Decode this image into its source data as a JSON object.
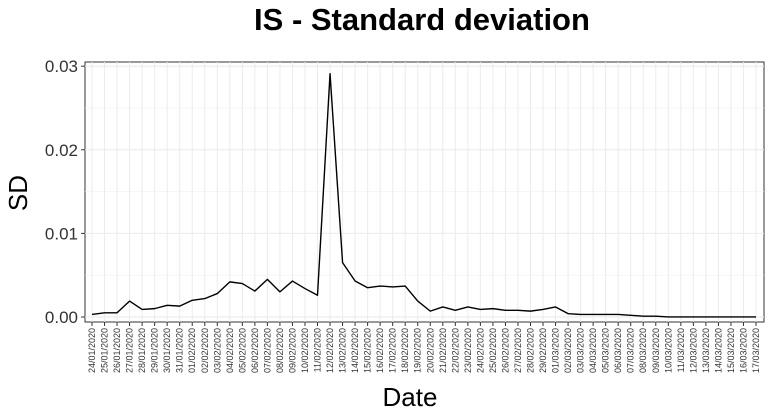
{
  "chart_data": {
    "type": "line",
    "title": "IS - Standard deviation",
    "xlabel": "Date",
    "ylabel": "SD",
    "ylim": [
      -0.0006,
      0.0305
    ],
    "yticks": [
      "0.00",
      "0.01",
      "0.02",
      "0.03"
    ],
    "ytick_values": [
      0,
      0.01,
      0.02,
      0.03
    ],
    "grid": true,
    "line_color": "#000000",
    "x": [
      "24/01/2020",
      "25/01/2020",
      "26/01/2020",
      "27/01/2020",
      "28/01/2020",
      "29/01/2020",
      "30/01/2020",
      "31/01/2020",
      "01/02/2020",
      "02/02/2020",
      "03/02/2020",
      "04/02/2020",
      "05/02/2020",
      "06/02/2020",
      "07/02/2020",
      "08/02/2020",
      "09/02/2020",
      "10/02/2020",
      "11/02/2020",
      "12/02/2020",
      "13/02/2020",
      "14/02/2020",
      "15/02/2020",
      "16/02/2020",
      "17/02/2020",
      "18/02/2020",
      "19/02/2020",
      "20/02/2020",
      "21/02/2020",
      "22/02/2020",
      "23/02/2020",
      "24/02/2020",
      "25/02/2020",
      "26/02/2020",
      "27/02/2020",
      "28/02/2020",
      "29/02/2020",
      "01/03/2020",
      "02/03/2020",
      "03/03/2020",
      "04/03/2020",
      "05/03/2020",
      "06/03/2020",
      "07/03/2020",
      "08/03/2020",
      "09/03/2020",
      "10/03/2020",
      "11/03/2020",
      "12/03/2020",
      "13/03/2020",
      "14/03/2020",
      "15/03/2020",
      "16/03/2020",
      "17/03/2020"
    ],
    "series": [
      {
        "values": [
          0.0003,
          0.0005,
          0.0005,
          0.0019,
          0.0009,
          0.001,
          0.0014,
          0.0013,
          0.002,
          0.0022,
          0.0028,
          0.0042,
          0.004,
          0.0031,
          0.0045,
          0.003,
          0.0043,
          0.0034,
          0.0026,
          0.0291,
          0.0065,
          0.0043,
          0.0035,
          0.0037,
          0.0036,
          0.0037,
          0.0019,
          0.0007,
          0.0012,
          0.0008,
          0.0012,
          0.0009,
          0.001,
          0.0008,
          0.0008,
          0.0007,
          0.0009,
          0.0012,
          0.0004,
          0.0003,
          0.0003,
          0.0003,
          0.0003,
          0.0002,
          0.0001,
          0.0001,
          0.0,
          0.0,
          0.0,
          0.0,
          0.0,
          0.0,
          0.0,
          0.0
        ]
      }
    ]
  }
}
